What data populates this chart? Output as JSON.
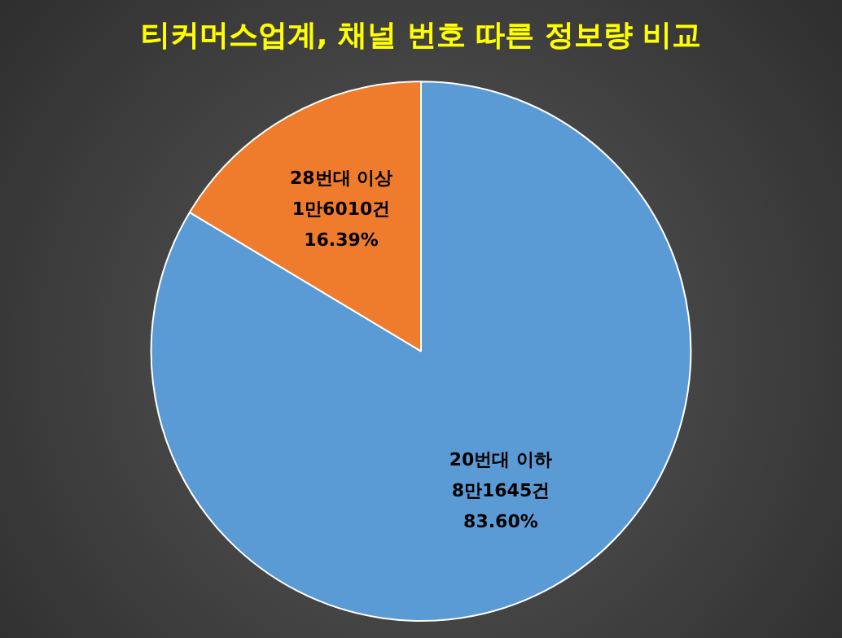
{
  "chart_data": {
    "type": "pie",
    "title": "티커머스업계, 채널 번호 따른 정보량 비교",
    "categories": [
      "20번대 이하",
      "28번대 이상"
    ],
    "values": [
      83.6,
      16.39
    ],
    "colors": [
      "#5b9bd5",
      "#ef7b2d"
    ],
    "value_labels": [
      "83.60%",
      "16.39%"
    ],
    "annotations": [
      {
        "text": "8만1645건",
        "x": "20번대 이하"
      },
      {
        "text": "1만6010건",
        "x": "28번대 이상"
      }
    ],
    "legend": false
  }
}
